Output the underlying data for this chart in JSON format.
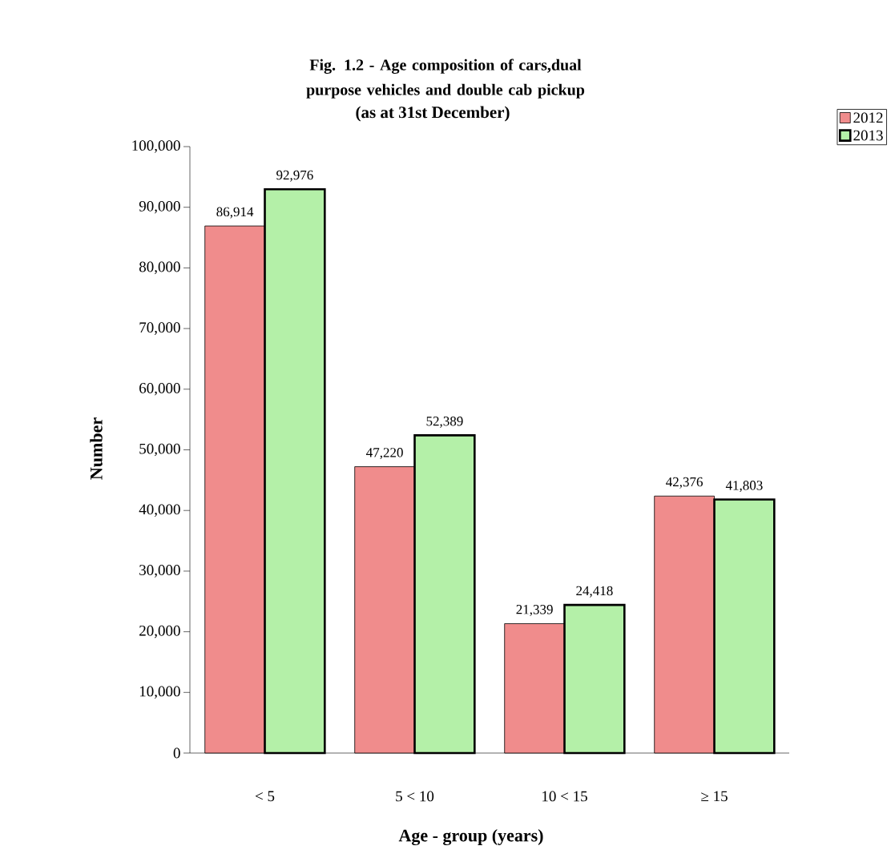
{
  "chart_data": {
    "type": "bar",
    "title": "Fig. 1.2 -  Age composition of cars,dual purpose vehicles and double cab pickup",
    "subtitle": "(as at 31st  December)",
    "xlabel": "Age - group (years)",
    "ylabel": "Number",
    "categories": [
      "<  5",
      "5 < 10",
      "10 < 15",
      "≥ 15"
    ],
    "series": [
      {
        "name": "2012",
        "color": "#f08c8c",
        "values": [
          86914,
          47220,
          21339,
          42376
        ],
        "value_labels": [
          "86,914",
          "47,220",
          "21,339",
          "42,376"
        ]
      },
      {
        "name": "2013",
        "color": "#b4f0a8",
        "values": [
          92976,
          52389,
          24418,
          41803
        ],
        "value_labels": [
          "92,976",
          "52,389",
          "24,418",
          "41,803"
        ]
      }
    ],
    "ylim": [
      0,
      100000
    ],
    "yticks": [
      0,
      {
        "value": 10000,
        "label": "10,000"
      },
      {
        "value": 20000,
        "label": "20,000"
      },
      {
        "value": 30000,
        "label": "30,000"
      },
      {
        "value": 40000,
        "label": "40,000"
      },
      {
        "value": 50000,
        "label": "50,000"
      },
      {
        "value": 60000,
        "label": "60,000"
      },
      {
        "value": 70000,
        "label": "70,000"
      },
      {
        "value": 80000,
        "label": "80,000"
      },
      {
        "value": 90000,
        "label": "90,000"
      },
      {
        "value": 100000,
        "label": "100,000"
      }
    ],
    "legend": "top right"
  }
}
